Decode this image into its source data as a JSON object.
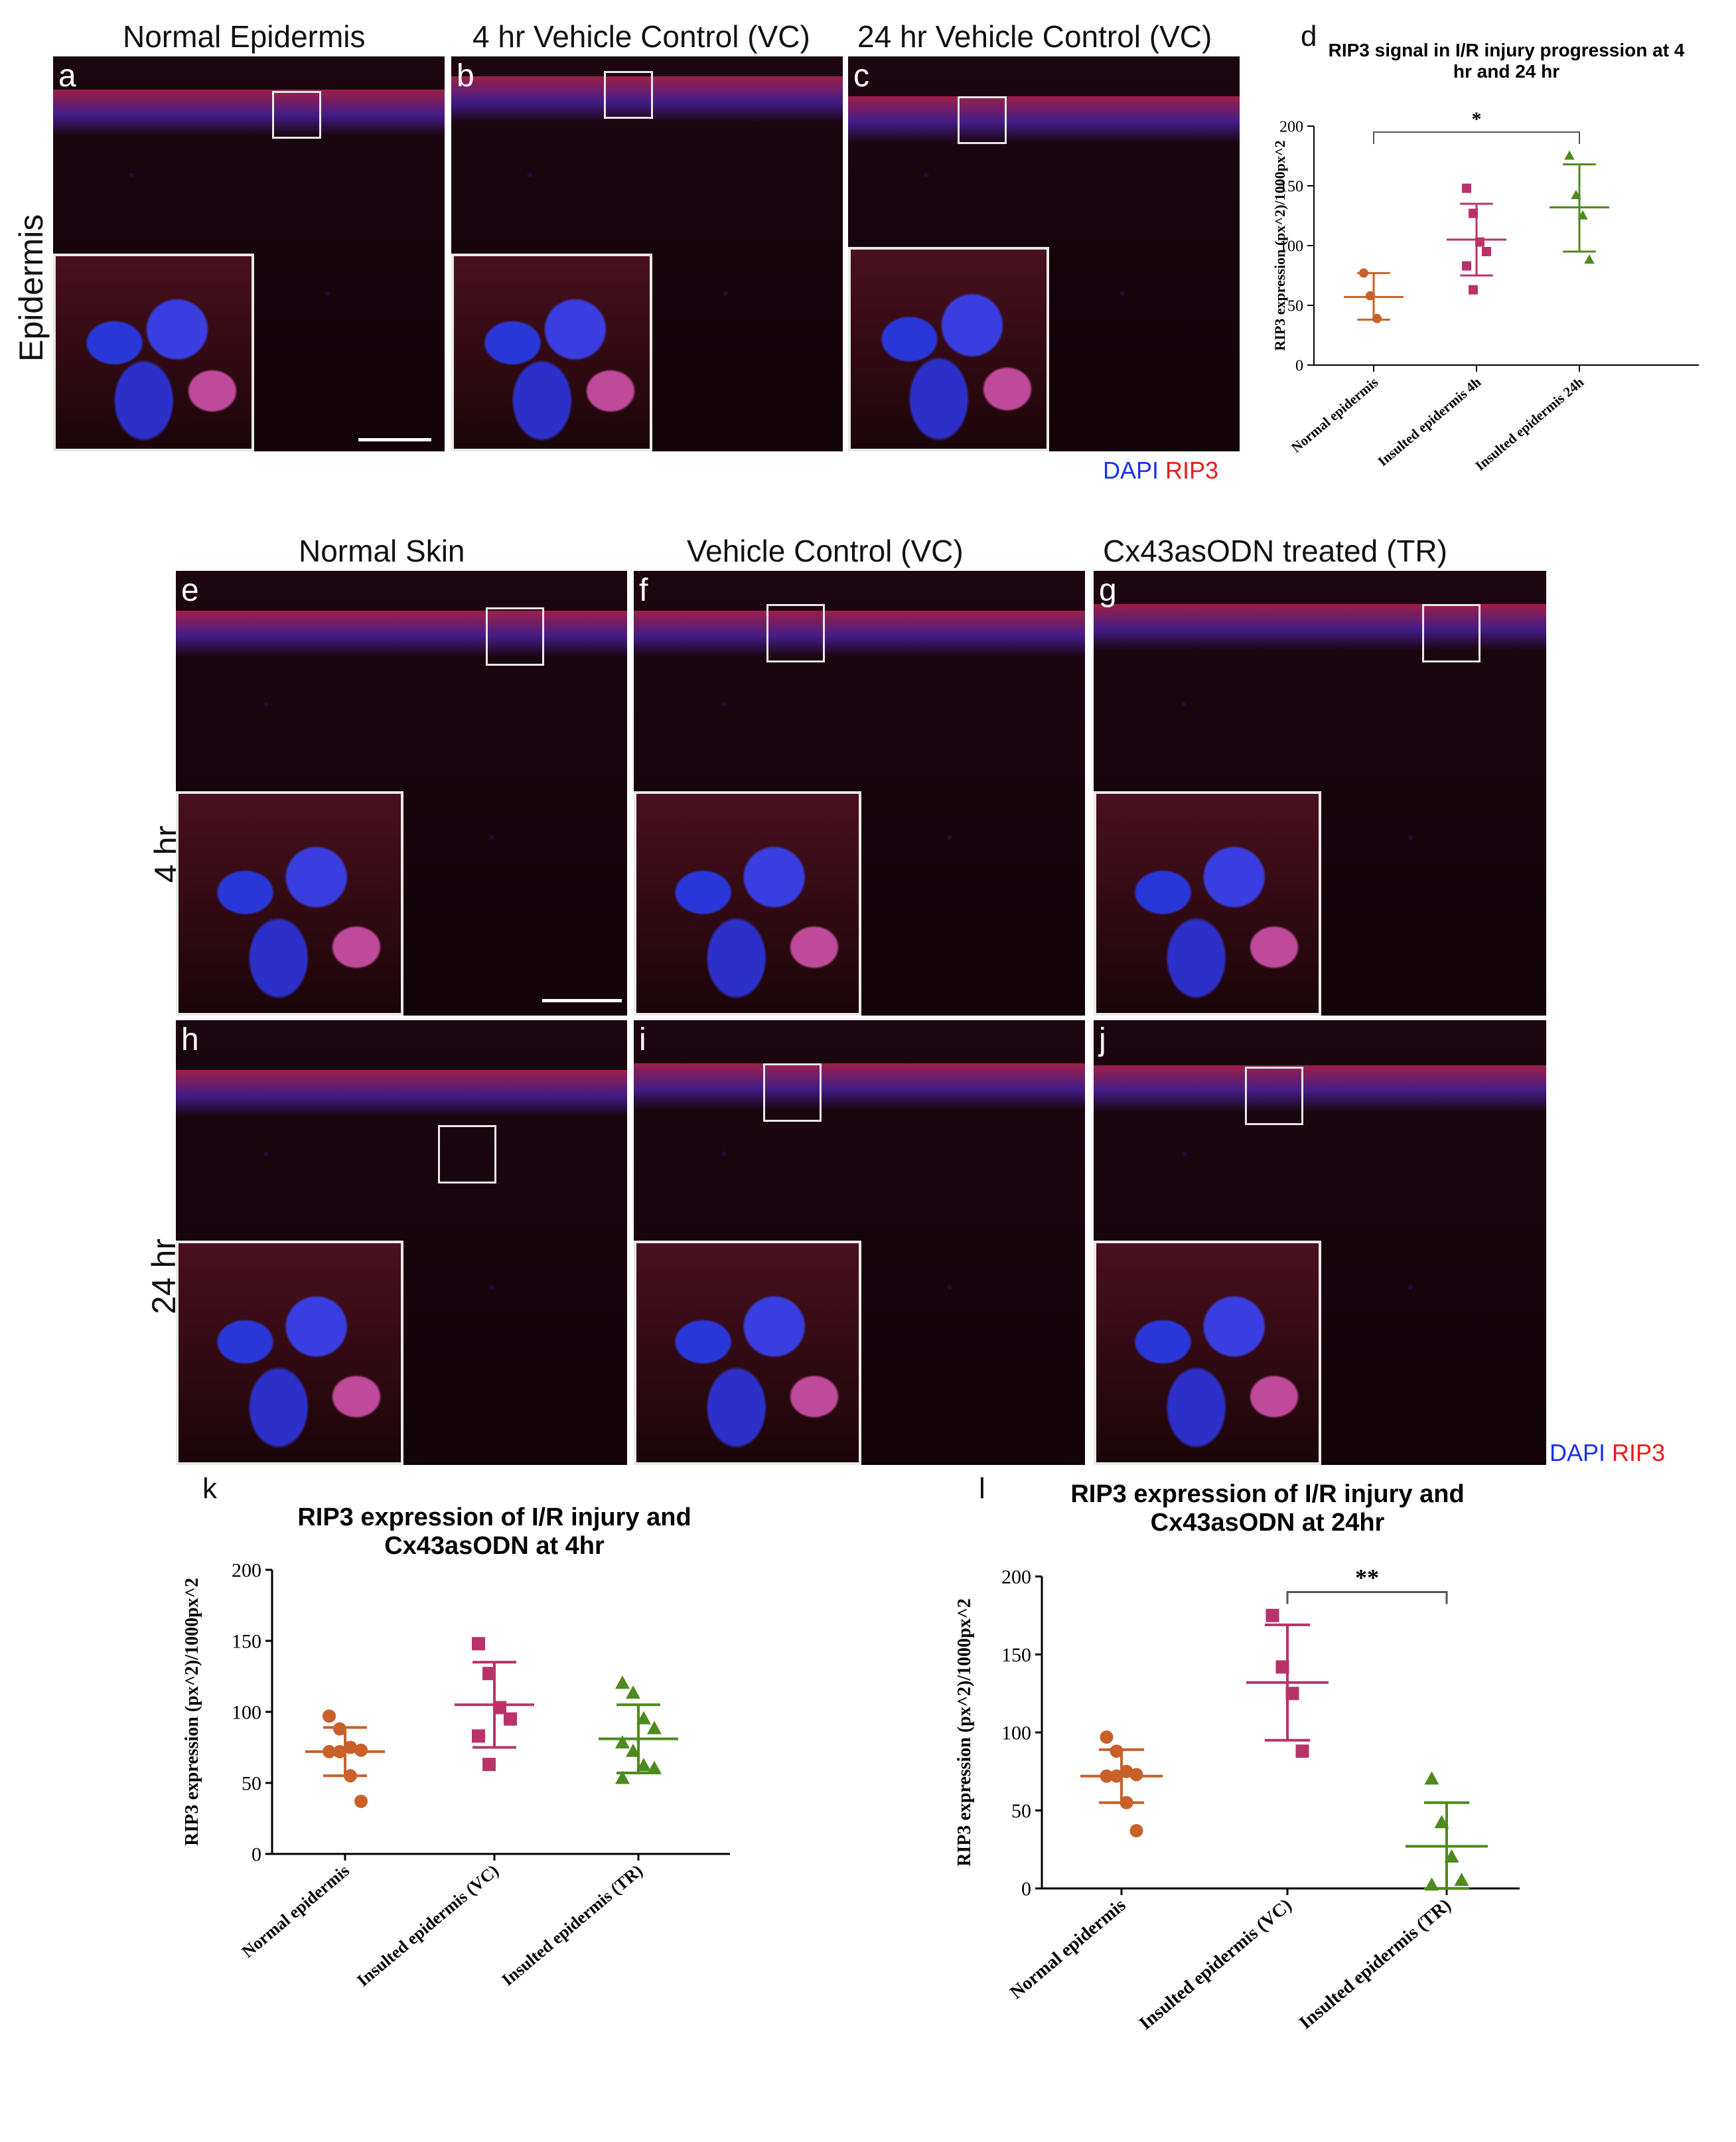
{
  "top": {
    "column_titles": [
      "Normal Epidermis",
      "4 hr Vehicle Control (VC)",
      "24 hr Vehicle Control (VC)"
    ],
    "row_title": "Epidermis",
    "panel_letters": [
      "a",
      "b",
      "c"
    ],
    "legend": {
      "dapi": "DAPI",
      "rip3": "RIP3"
    }
  },
  "middle": {
    "column_titles": [
      "Normal Skin",
      "Vehicle Control (VC)",
      "Cx43asODN treated (TR)"
    ],
    "row_titles": [
      "4 hr",
      "24 hr"
    ],
    "panel_letters_row1": [
      "e",
      "f",
      "g"
    ],
    "panel_letters_row2": [
      "h",
      "i",
      "j"
    ],
    "legend": {
      "dapi": "DAPI",
      "rip3": "RIP3"
    }
  },
  "colors": {
    "normal": "#c8602a",
    "vc": "#b8336a",
    "tr": "#4e8a1e",
    "dapi": "#1a2ff0",
    "rip3": "#ee1a1a"
  },
  "chart_data": [
    {
      "panel": "d",
      "type": "scatter",
      "title": "RIP3 signal in I/R injury progression at 4 hr and 24 hr",
      "ylabel": "RIP3 expression (px^2)/1000px^2",
      "ylim": [
        0,
        200
      ],
      "yticks": [
        0,
        50,
        100,
        150,
        200
      ],
      "categories": [
        "Normal epidermis",
        "Insulted epidermis 4h",
        "Insulted epidermis 24h"
      ],
      "series": [
        {
          "category": "Normal epidermis",
          "marker": "circle",
          "points": [
            77,
            58,
            39
          ],
          "mean": 57,
          "sd": [
            38,
            77
          ]
        },
        {
          "category": "Insulted epidermis 4h",
          "marker": "square",
          "points": [
            148,
            127,
            103,
            95,
            83,
            63
          ],
          "mean": 105,
          "sd": [
            75,
            135
          ]
        },
        {
          "category": "Insulted epidermis 24h",
          "marker": "triangle",
          "points": [
            175,
            142,
            125,
            88
          ],
          "mean": 132,
          "sd": [
            95,
            168
          ]
        }
      ],
      "significance": "*"
    },
    {
      "panel": "k",
      "type": "scatter",
      "title": "RIP3 expression of I/R injury and Cx43asODN at 4hr",
      "ylabel": "RIP3 expression (px^2)/1000px^2",
      "ylim": [
        0,
        200
      ],
      "yticks": [
        0,
        50,
        100,
        150,
        200
      ],
      "categories": [
        "Normal epidermis",
        "Insulted epidermis (VC)",
        "Insulted epidermis (TR)"
      ],
      "series": [
        {
          "category": "Normal epidermis",
          "marker": "circle",
          "points": [
            97,
            88,
            75,
            73,
            72,
            72,
            55,
            37
          ],
          "mean": 72,
          "sd": [
            55,
            89
          ]
        },
        {
          "category": "Insulted epidermis (VC)",
          "marker": "square",
          "points": [
            148,
            127,
            103,
            95,
            83,
            63
          ],
          "mean": 105,
          "sd": [
            75,
            135
          ]
        },
        {
          "category": "Insulted epidermis (TR)",
          "marker": "triangle",
          "points": [
            120,
            113,
            95,
            88,
            78,
            72,
            62,
            60,
            53
          ],
          "mean": 81,
          "sd": [
            57,
            105
          ]
        }
      ]
    },
    {
      "panel": "l",
      "type": "scatter",
      "title": "RIP3 expression of I/R injury and Cx43asODN at 24hr",
      "ylabel": "RIP3 expression (px^2)/1000px^2",
      "ylim": [
        0,
        200
      ],
      "yticks": [
        0,
        50,
        100,
        150,
        200
      ],
      "categories": [
        "Normal epidermis",
        "Insulted epidermis (VC)",
        "Insulted epidermis (TR)"
      ],
      "series": [
        {
          "category": "Normal epidermis",
          "marker": "circle",
          "points": [
            97,
            88,
            75,
            73,
            72,
            72,
            55,
            37
          ],
          "mean": 72,
          "sd": [
            55,
            89
          ]
        },
        {
          "category": "Insulted epidermis (VC)",
          "marker": "square",
          "points": [
            175,
            142,
            125,
            88
          ],
          "mean": 132,
          "sd": [
            95,
            169
          ]
        },
        {
          "category": "Insulted epidermis (TR)",
          "marker": "triangle",
          "points": [
            70,
            42,
            20,
            5,
            2
          ],
          "mean": 27,
          "sd": [
            0,
            55
          ]
        }
      ],
      "significance": "**"
    }
  ]
}
